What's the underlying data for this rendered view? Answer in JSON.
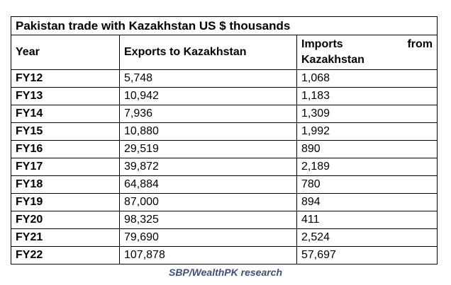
{
  "table": {
    "title": "Pakistan trade with Kazakhstan US $ thousands",
    "headers": {
      "year": "Year",
      "exports": "Exports to Kazakhstan",
      "imports": "Imports from Kazakhstan"
    },
    "rows": [
      {
        "year": "FY12",
        "exports": "5,748",
        "imports": "1,068"
      },
      {
        "year": "FY13",
        "exports": "10,942",
        "imports": "1,183"
      },
      {
        "year": "FY14",
        "exports": "7,936",
        "imports": "1,309"
      },
      {
        "year": "FY15",
        "exports": "10,880",
        "imports": "1,992"
      },
      {
        "year": "FY16",
        "exports": "29,519",
        "imports": "890"
      },
      {
        "year": "FY17",
        "exports": "39,872",
        "imports": "2,189"
      },
      {
        "year": "FY18",
        "exports": "64,884",
        "imports": "780"
      },
      {
        "year": "FY19",
        "exports": "87,000",
        "imports": "894"
      },
      {
        "year": "FY20",
        "exports": "98,325",
        "imports": "411"
      },
      {
        "year": "FY21",
        "exports": "79,690",
        "imports": "2,524"
      },
      {
        "year": "FY22",
        "exports": "107,878",
        "imports": "57,697"
      }
    ]
  },
  "source": "SBP/WealthPK research",
  "colors": {
    "source_text": "#3f4f7a",
    "border": "#000000"
  }
}
